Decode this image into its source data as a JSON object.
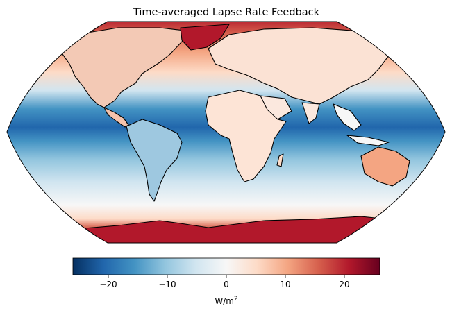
{
  "title": "Time-averaged Lapse Rate Feedback",
  "map": {
    "projection": "Robinson",
    "colormap": "RdBu_r",
    "field": "lapse rate feedback",
    "land_outline_color": "#000000"
  },
  "colorbar": {
    "vmin": -26,
    "vmax": 26,
    "ticks": [
      -20,
      -10,
      0,
      10,
      20
    ],
    "tick_labels": [
      "−20",
      "−10",
      "0",
      "10",
      "20"
    ],
    "unit_base": "W/m",
    "unit_exp": "2",
    "stops": [
      "#053061",
      "#2166ac",
      "#4393c3",
      "#92c5de",
      "#d1e5f0",
      "#f7f7f7",
      "#fddbc7",
      "#f4a582",
      "#d6604d",
      "#b2182b",
      "#67001f"
    ]
  }
}
